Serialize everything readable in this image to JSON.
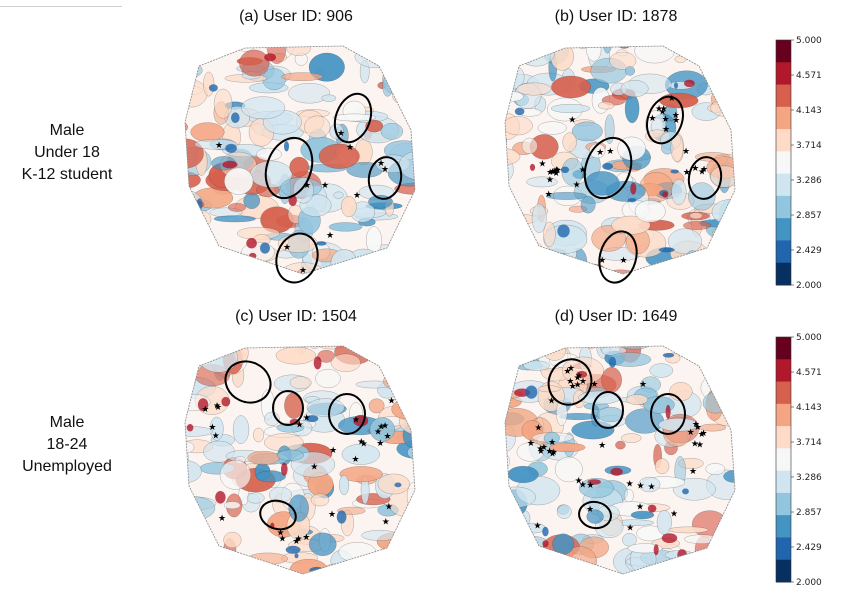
{
  "row_labels": [
    {
      "lines": [
        "Male",
        "Under 18",
        "K-12 student"
      ]
    },
    {
      "lines": [
        "Male",
        "18-24",
        "Unemployed"
      ]
    }
  ],
  "colorbar": {
    "ticks": [
      "5.000",
      "4.571",
      "4.143",
      "3.714",
      "3.286",
      "2.857",
      "2.429",
      "2.000"
    ],
    "min": 2.0,
    "max": 5.0,
    "colors": [
      "#67001f",
      "#b2182b",
      "#d6604d",
      "#f4a582",
      "#fddbc7",
      "#f7f7f7",
      "#d1e5f0",
      "#92c5de",
      "#4393c3",
      "#2166ac",
      "#053061"
    ]
  },
  "chart_data": [
    {
      "type": "heatmap",
      "title": "(a) User ID: 906",
      "value_range": [
        2.0,
        5.0
      ],
      "circled_regions": 5,
      "star_markers": 12
    },
    {
      "type": "heatmap",
      "title": "(b) User ID: 1878",
      "value_range": [
        2.0,
        5.0
      ],
      "circled_regions": 4,
      "star_markers": 30
    },
    {
      "type": "heatmap",
      "title": "(c) User ID: 1504",
      "value_range": [
        2.0,
        5.0
      ],
      "circled_regions": 4,
      "star_markers": 28
    },
    {
      "type": "heatmap",
      "title": "(d) User ID: 1649",
      "value_range": [
        2.0,
        5.0
      ],
      "circled_regions": 4,
      "star_markers": 40
    }
  ]
}
